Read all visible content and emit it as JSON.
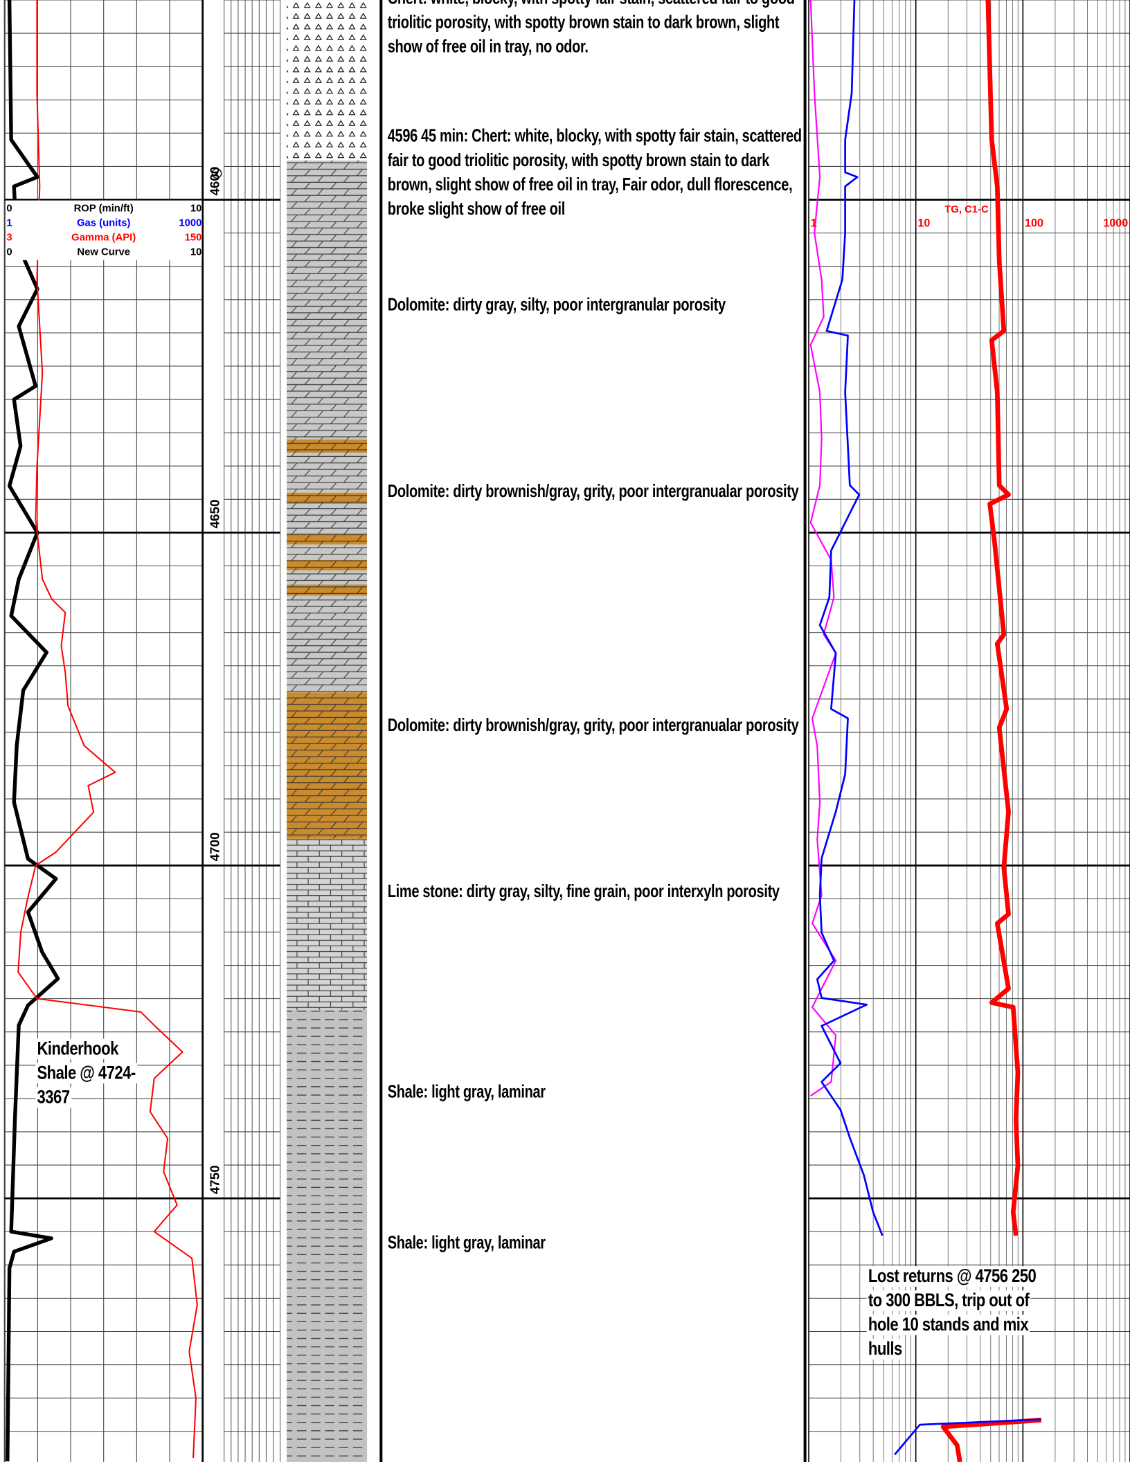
{
  "log": {
    "depth_range": [
      4570,
      4789.6
    ],
    "depth_ticks": [
      4600,
      4650,
      4700,
      4750
    ],
    "legend": [
      {
        "name": "ROP (min/ft)",
        "min": 0,
        "max": 10,
        "color": "#000000",
        "track": "left",
        "depths": [
          4570,
          4591,
          4596.6,
          4598,
          4606.4,
          4613.4,
          4619,
          4628,
          4630,
          4637,
          4643,
          4650,
          4657,
          4662.5,
          4668,
          4673.7,
          4682,
          4690.5,
          4699,
          4702,
          4707,
          4713,
          4717,
          4721,
          4724,
          4738,
          4755,
          4756,
          4758,
          4760.5,
          4789.5
        ],
        "values": [
          0.24,
          0.33,
          1.65,
          0.47,
          0.61,
          1.65,
          0.71,
          1.56,
          0.47,
          0.8,
          0.24,
          1.65,
          0.71,
          0.33,
          2.12,
          0.94,
          0.61,
          0.47,
          1.18,
          2.59,
          1.18,
          1.89,
          2.69,
          1.18,
          0.71,
          0.52,
          0.33,
          2.36,
          0.47,
          0.24,
          0.14
        ]
      },
      {
        "name": "Gas (units)",
        "min": 1,
        "max": 1000,
        "color": "#0000ff",
        "track": "right",
        "depths": [
          4570,
          4584,
          4591,
          4595.9,
          4596.6,
          4598,
          4605,
          4612,
          4619.7,
          4620.4,
          4628.9,
          4642.9,
          4644.3,
          4649.9,
          4652.7,
          4659.7,
          4663.9,
          4668.1,
          4676.5,
          4677.9,
          4686.3,
          4691.9,
          4698.9,
          4704.5,
          4710.1,
          4714.3,
          4717.1,
          4719.9,
          4720.9,
          4724.1,
          4729.7,
          4732.5,
          4736.7,
          4740.9,
          4746.5,
          4752.1,
          4755.6,
          4770,
          4788.5,
          4784.0,
          4783.2
        ],
        "values": [
          2.67,
          2.52,
          2.19,
          2.19,
          2.84,
          2.19,
          2.19,
          2.06,
          1.47,
          2.32,
          2.19,
          2.42,
          2.96,
          1.98,
          1.62,
          1.56,
          1.27,
          1.79,
          1.62,
          2.32,
          2.19,
          1.79,
          1.32,
          1.27,
          1.32,
          1.72,
          1.2,
          1.32,
          3.47,
          1.32,
          1.98,
          1.32,
          1.98,
          2.42,
          3.27,
          4,
          4.88,
          null,
          6.34,
          10.9,
          148
        ]
      },
      {
        "name": "Gamma (API)",
        "min": 3,
        "max": 150,
        "color": "#ff0000",
        "track": "left",
        "depths": [
          4570,
          4584,
          4598,
          4612,
          4626,
          4640,
          4648,
          4657,
          4660,
          4662,
          4667,
          4671,
          4676,
          4682,
          4686,
          4688,
          4692,
          4698,
          4700,
          4705,
          4710,
          4716,
          4720,
          4722,
          4724,
          4728,
          4732,
          4737,
          4741,
          4746,
          4751,
          4755,
          4759,
          4766,
          4773,
          4780,
          4789
        ],
        "values": [
          27,
          27,
          29,
          27,
          31,
          27,
          26,
          31,
          38,
          48,
          45,
          48,
          50,
          62,
          85,
          65,
          69,
          41,
          26,
          20,
          15,
          13,
          27,
          104,
          114,
          135,
          114,
          111,
          124,
          121,
          131,
          114,
          142,
          146,
          140,
          145,
          143
        ]
      },
      {
        "name": "New Curve",
        "min": 0,
        "max": 10,
        "color": "#000000",
        "track": "left",
        "depths": [],
        "values": []
      }
    ],
    "right_track": {
      "title": "TG, C1-C",
      "ticks": [
        1,
        10,
        100,
        1000
      ],
      "log": true,
      "curves": [
        {
          "color": "#ff00ff",
          "depths": [
            4570,
            4584,
            4596.6,
            4599.4,
            4605,
            4612,
            4617.6,
            4621.8,
            4628.9,
            4635.9,
            4642.9,
            4648.5,
            4654.1,
            4659.7,
            4665.3,
            4668.1,
            4677.9,
            4682.1,
            4690.5,
            4696.1,
            4704.5,
            4708.7,
            4714.3,
            4718.5,
            4721.3,
            4725.5,
            4732.5,
            4734.6
          ],
          "values": [
            1.04,
            1.13,
            1.27,
            1.22,
            1.13,
            1.32,
            1.38,
            1.04,
            1.27,
            1.32,
            1.27,
            1.04,
            1.62,
            1.72,
            1.38,
            1.79,
            1.08,
            1.2,
            1.27,
            1.2,
            1.32,
            1.08,
            1.79,
            1.32,
            1.08,
            1.79,
            1.62,
            1.04
          ]
        },
        {
          "color": "#ff0000",
          "depths": [
            4570,
            4591,
            4598,
            4609.2,
            4619.7,
            4621.1,
            4628.9,
            4642.9,
            4644.3,
            4645.7,
            4651.3,
            4665.3,
            4666.7,
            4676.5,
            4679.3,
            4691.9,
            4700.3,
            4707.3,
            4708.7,
            4718.5,
            4720.6,
            4721.3,
            4731.1,
            4738.1,
            4745.1,
            4752.1,
            4755.6,
            4770,
            4783.3,
            4784.3,
            4787.1,
            4789.6
          ],
          "values": [
            47.2,
            51.1,
            57.7,
            60.1,
            66.4,
            51.1,
            57.7,
            60.1,
            73.4,
            49.1,
            54.3,
            66.4,
            57.7,
            70.5,
            60.1,
            73.4,
            66.4,
            73.4,
            57.7,
            73.4,
            51.1,
            81.1,
            89.7,
            86.1,
            89.7,
            81.1,
            86.1,
            null,
            148,
            18,
            24.3,
            25.8
          ]
        }
      ]
    },
    "lithology": [
      {
        "type": "chert",
        "top": 4570,
        "base": 4594.1
      },
      {
        "type": "dolomite",
        "top": 4594.1,
        "base": 4636
      },
      {
        "type": "dolomite-brown",
        "top": 4636,
        "base": 4638
      },
      {
        "type": "dolomite",
        "top": 4638,
        "base": 4644
      },
      {
        "type": "dolomite-brown",
        "top": 4644,
        "base": 4645.7
      },
      {
        "type": "dolomite",
        "top": 4645.7,
        "base": 4650.1
      },
      {
        "type": "dolomite-brown",
        "top": 4650.1,
        "base": 4651.8
      },
      {
        "type": "dolomite",
        "top": 4651.8,
        "base": 4654.1
      },
      {
        "type": "dolomite-brown",
        "top": 4654.1,
        "base": 4655.7
      },
      {
        "type": "dolomite",
        "top": 4655.7,
        "base": 4657.8
      },
      {
        "type": "dolomite-brown",
        "top": 4657.8,
        "base": 4659.5
      },
      {
        "type": "dolomite",
        "top": 4659.5,
        "base": 4674
      },
      {
        "type": "dolomite-brown",
        "top": 4674,
        "base": 4696
      },
      {
        "type": "limestone",
        "top": 4696,
        "base": 4721.7
      },
      {
        "type": "shale",
        "top": 4721.7,
        "base": 4789.6
      }
    ],
    "descriptions": [
      "Chert: white, blocky, with spotty fair stain, scattered fair to good triolitic porosity, with spotty brown stain to dark brown, slight show of free oil in tray, no odor.",
      "4596 45 min: Chert: white, blocky, with spotty fair stain, scattered fair to good triolitic porosity, with spotty brown stain to dark brown, slight show of free oil in tray, Fair odor, dull florescence, broke slight show of free oil",
      "Dolomite: dirty gray, silty, poor intergranular porosity",
      "Dolomite: dirty brownish/gray, grity, poor intergranualar porosity",
      "Dolomite: dirty brownish/gray, grity, poor intergranualar porosity",
      "Lime stone: dirty gray, silty, fine grain, poor interxyln porosity",
      "Shale: light gray, laminar",
      "Shale: light gray, laminar"
    ],
    "annotations": [
      "Kinderhook Shale @ 4724-3367",
      "Lost returns @ 4756 250 to 300 BBLS, trip out of hole 10 stands and mix hulls"
    ]
  }
}
